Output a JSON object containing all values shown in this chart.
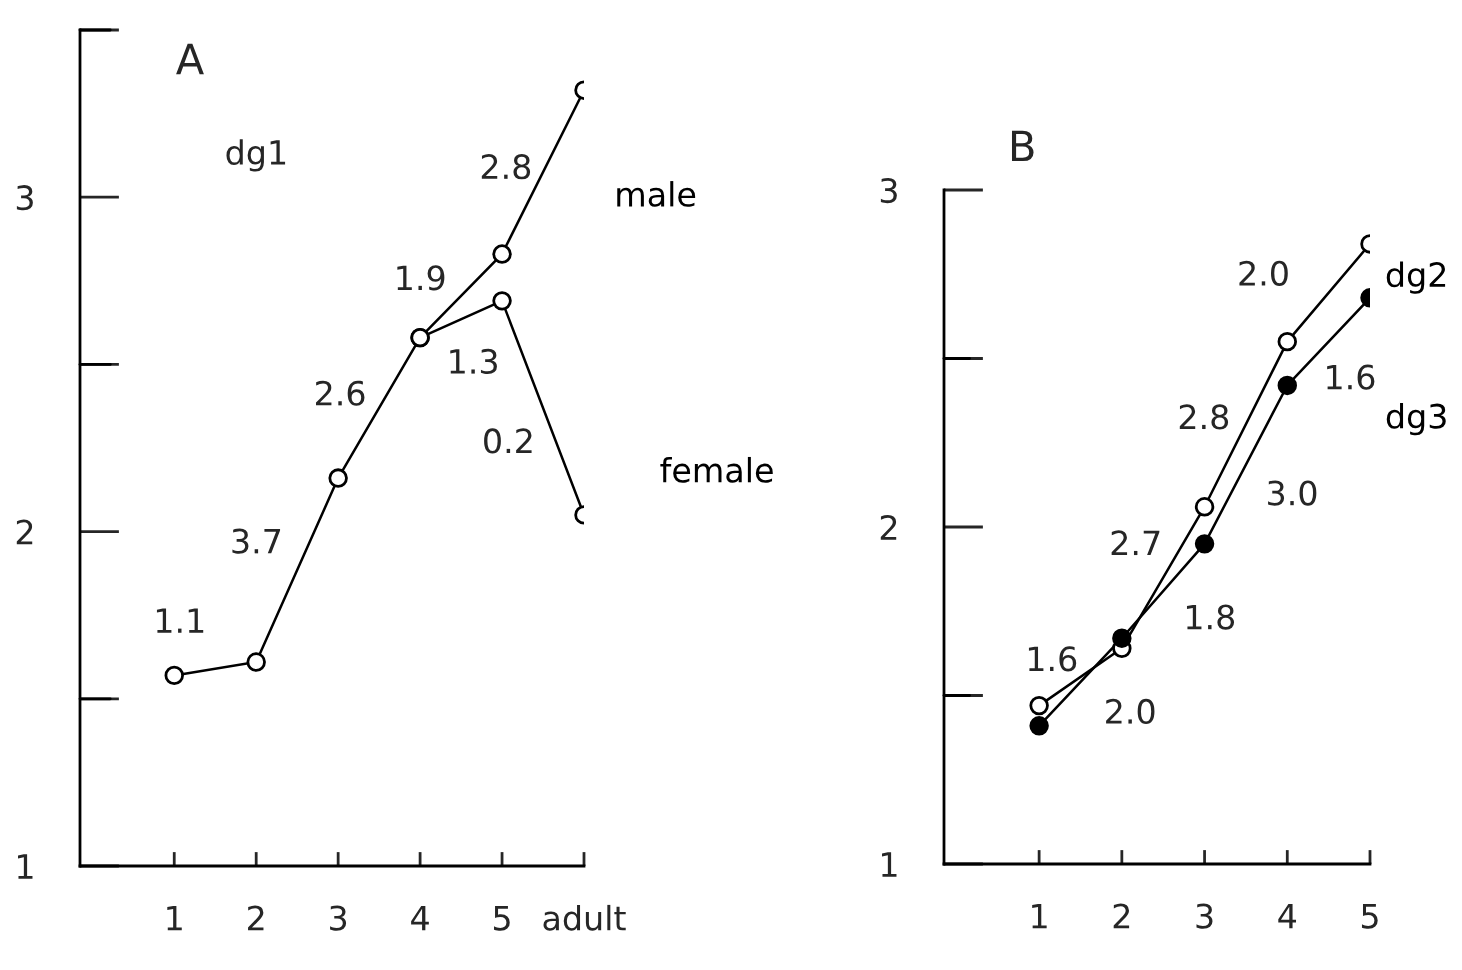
{
  "chart_data": [
    {
      "type": "line",
      "title": "A",
      "categories": [
        "1",
        "2",
        "3",
        "4",
        "5",
        "adult"
      ],
      "series": [
        {
          "name": "male",
          "color": "#000000",
          "colors": [
            "#ffffff",
            "#ffffff",
            "#ffffff",
            "#ffffff",
            "#ffffff",
            "#ffffff"
          ],
          "values": [
            1.57,
            1.61,
            2.16,
            2.58,
            2.83,
            3.32
          ]
        },
        {
          "name": "female",
          "color": "#000000",
          "colors": [
            null,
            null,
            null,
            "#ffffff",
            "#ffffff",
            "#ffffff"
          ],
          "values": [
            null,
            null,
            null,
            2.58,
            2.69,
            2.05
          ]
        }
      ],
      "ylim": [
        1,
        3.5
      ],
      "yticks": [
        1,
        {
          "value": 1.5,
          "label": null
        },
        2,
        {
          "value": 2.5,
          "label": null
        },
        3,
        {
          "value": 3.5,
          "label": null
        }
      ],
      "annotations": [
        "dg1",
        "2.8",
        "1.9",
        "1.3",
        "2.6",
        "0.2",
        "3.7",
        "1.1"
      ],
      "marker": "circle",
      "line_style": "solid",
      "grid": false,
      "legend": false
    },
    {
      "type": "line",
      "title": "B",
      "categories": [
        "1",
        "2",
        "3",
        "4",
        "5"
      ],
      "series": [
        {
          "name": "dg2",
          "color": "#000000",
          "colors": [
            "#ffffff",
            "#ffffff",
            "#ffffff",
            "#ffffff",
            "#ffffff"
          ],
          "values": [
            1.47,
            1.64,
            2.06,
            2.55,
            2.84
          ]
        },
        {
          "name": "dg3",
          "color": "#000000",
          "colors": [
            "#000000",
            "#000000",
            "#000000",
            "#000000",
            "#000000"
          ],
          "values": [
            1.41,
            1.67,
            1.95,
            2.42,
            2.68
          ]
        }
      ],
      "ylim": [
        1,
        3
      ],
      "yticks": [
        1,
        {
          "value": 1.5,
          "label": null
        },
        2,
        {
          "value": 2.5,
          "label": null
        },
        3
      ],
      "annotations": [
        "2.0",
        "1.6",
        "2.8",
        "3.0",
        "2.7",
        "1.8",
        "1.6",
        "2.0"
      ],
      "marker": "circle",
      "line_style": "solid",
      "grid": false,
      "legend": false
    }
  ]
}
